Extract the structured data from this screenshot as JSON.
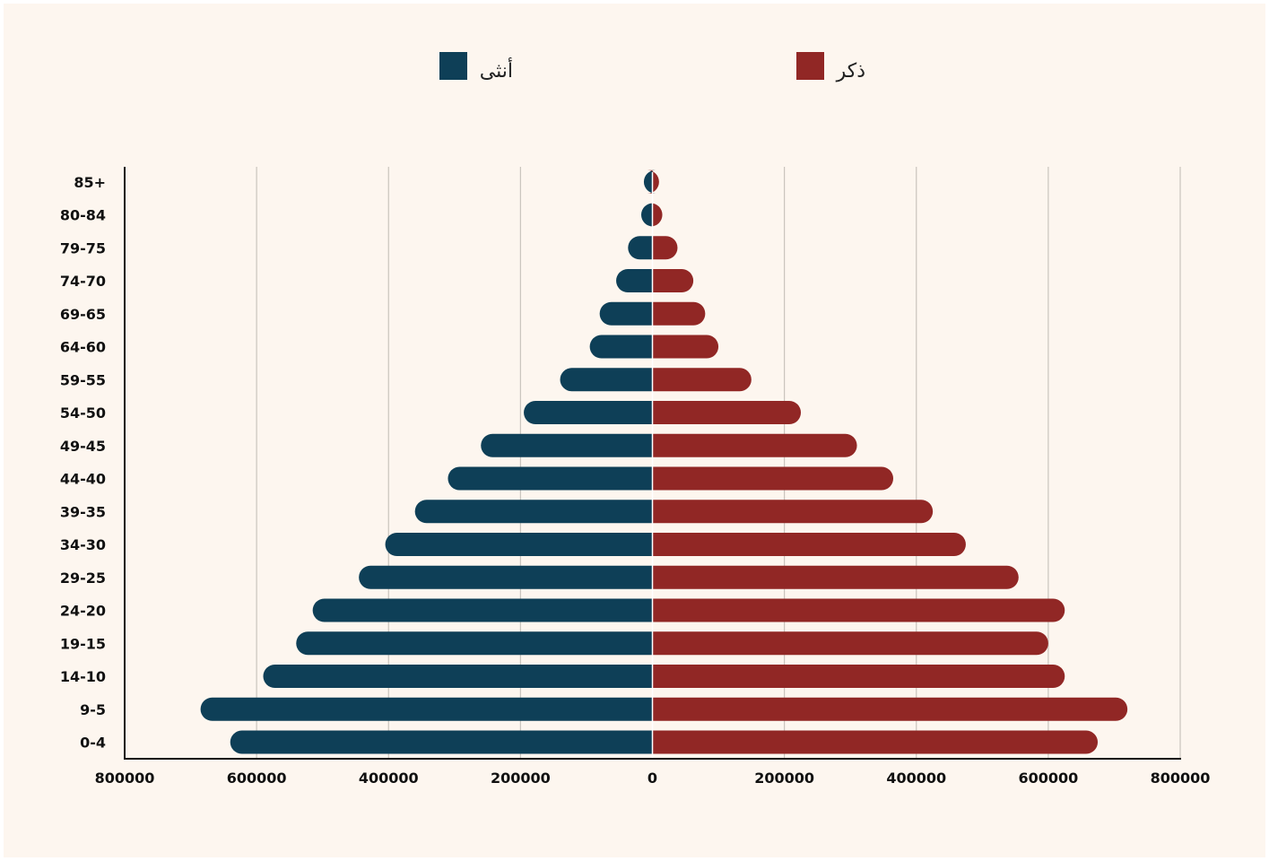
{
  "chart_data": {
    "type": "bar",
    "orientation": "horizontal",
    "layout": "population-pyramid",
    "categories": [
      "0-4",
      "9-5",
      "14-10",
      "19-15",
      "24-20",
      "29-25",
      "34-30",
      "39-35",
      "44-40",
      "49-45",
      "54-50",
      "59-55",
      "64-60",
      "69-65",
      "74-70",
      "79-75",
      "80-84",
      "85+"
    ],
    "series": [
      {
        "name": "أنثى",
        "side": "left",
        "color": "#0e3f57",
        "values": [
          640000,
          685000,
          590000,
          540000,
          515000,
          445000,
          405000,
          360000,
          310000,
          260000,
          195000,
          140000,
          95000,
          80000,
          55000,
          37000,
          17000,
          13000
        ]
      },
      {
        "name": "ذكر",
        "side": "right",
        "color": "#912725",
        "values": [
          675000,
          720000,
          625000,
          600000,
          625000,
          555000,
          475000,
          425000,
          365000,
          310000,
          225000,
          150000,
          100000,
          80000,
          62000,
          38000,
          15000,
          10000
        ]
      }
    ],
    "x_ticks": [
      "800000",
      "600000",
      "400000",
      "200000",
      "0",
      "200000",
      "400000",
      "600000",
      "800000"
    ],
    "xlim": [
      -800000,
      800000
    ],
    "grid": true,
    "legend_position": "top",
    "title": "",
    "xlabel": "",
    "ylabel": ""
  }
}
